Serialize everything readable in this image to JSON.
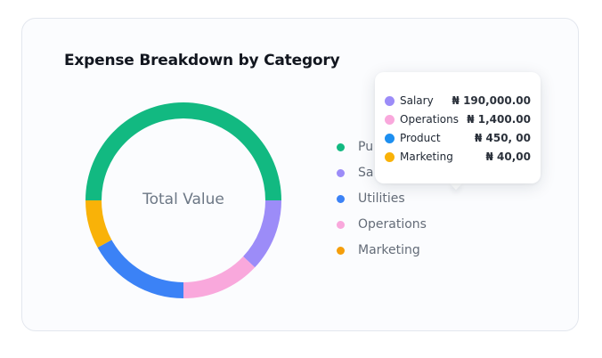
{
  "card": {
    "title": "Expense Breakdown by Category"
  },
  "chart_data": {
    "type": "pie",
    "center_label": "Total Value",
    "slices": [
      {
        "name": "Purchases",
        "color": "#12b981",
        "fraction": 0.5
      },
      {
        "name": "Salary",
        "color": "#9c8cf8",
        "fraction": 0.12
      },
      {
        "name": "Operations",
        "color": "#f9a8dc",
        "fraction": 0.13
      },
      {
        "name": "Utilities",
        "color": "#3b82f6",
        "fraction": 0.17
      },
      {
        "name": "Marketing",
        "color": "#f9b208",
        "fraction": 0.08
      }
    ]
  },
  "legend": {
    "items": [
      {
        "label": "Pu",
        "color": "#12b981"
      },
      {
        "label": "Sa",
        "color": "#9c8cf8"
      },
      {
        "label": "Utilities",
        "color": "#3b82f6"
      },
      {
        "label": "Operations",
        "color": "#f9a8dc"
      },
      {
        "label": "Marketing",
        "color": "#f59e0b"
      }
    ]
  },
  "tooltip": {
    "rows": [
      {
        "label": "Salary",
        "value": "₦ 190,000.00",
        "color": "#9c8cf8"
      },
      {
        "label": "Operations",
        "value": "₦ 1,400.00",
        "color": "#f9a8dc"
      },
      {
        "label": "Product",
        "value": "₦ 450, 00",
        "color": "#1d8ff0"
      },
      {
        "label": "Marketing",
        "value": "₦ 40,00",
        "color": "#f9b208"
      }
    ]
  }
}
